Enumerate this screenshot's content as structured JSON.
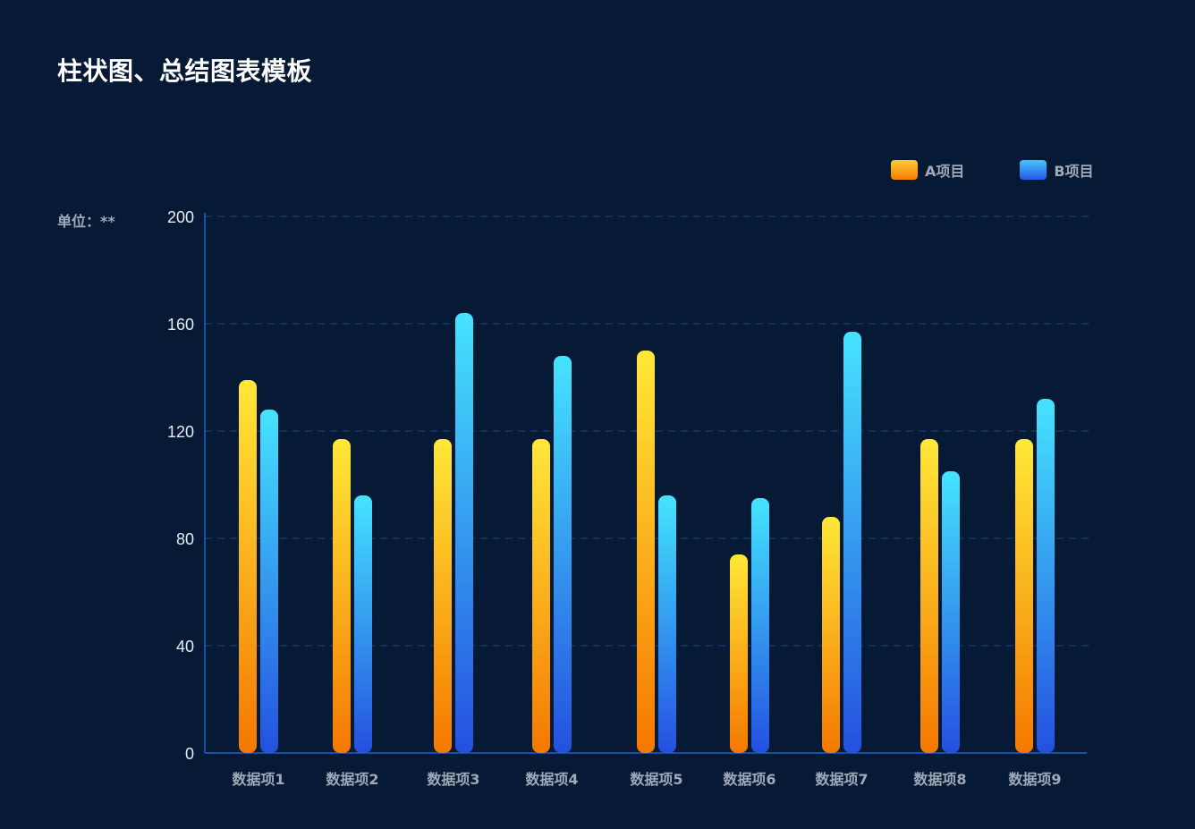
{
  "title": "柱状图、总结图表模板",
  "unit_label": "单位：**",
  "legend": [
    {
      "name": "A项目",
      "swatch": "swatch-a"
    },
    {
      "name": "B项目",
      "swatch": "swatch-b"
    }
  ],
  "colors": {
    "background": "#071a35",
    "axis": "#1b4fa3",
    "grid": "#17386c",
    "tick_text": "#e6ebf2",
    "category_text": "#9fa9b8",
    "a_top": "#ffe838",
    "a_bottom": "#f57800",
    "b_top": "#45e4ff",
    "b_bottom": "#2450e0"
  },
  "chart_data": {
    "type": "bar",
    "title": "柱状图、总结图表模板",
    "ylabel": "单位：**",
    "xlabel": "",
    "categories": [
      "数据项1",
      "数据项2",
      "数据项3",
      "数据项4",
      "数据项5",
      "数据项6",
      "数据项7",
      "数据项8",
      "数据项9"
    ],
    "series": [
      {
        "name": "A项目",
        "values": [
          139,
          117,
          117,
          117,
          150,
          74,
          88,
          117,
          117
        ]
      },
      {
        "name": "B项目",
        "values": [
          128,
          96,
          164,
          148,
          96,
          95,
          157,
          105,
          132
        ]
      }
    ],
    "ylim": [
      0,
      200
    ],
    "yticks": [
      0,
      40,
      80,
      120,
      160,
      200
    ],
    "grid": true,
    "legend_position": "top-right"
  }
}
